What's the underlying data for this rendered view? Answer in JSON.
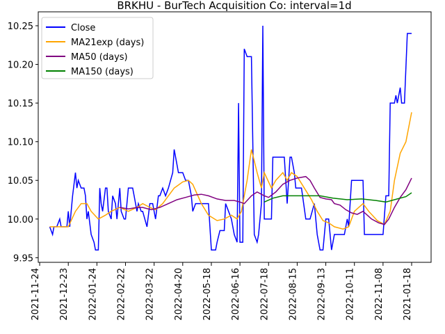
{
  "chart_data": {
    "type": "line",
    "title": "BRKHU - BurTech Acquisition Co: interval=1d",
    "xlim": [
      -1,
      273.6
    ],
    "xticks": [
      {
        "value": 0,
        "label": "2021-11-24"
      },
      {
        "value": 20,
        "label": "2021-12-23"
      },
      {
        "value": 40,
        "label": "2022-01-24"
      },
      {
        "value": 60,
        "label": "2022-02-22"
      },
      {
        "value": 80,
        "label": "2022-03-22"
      },
      {
        "value": 100,
        "label": "2022-04-20"
      },
      {
        "value": 120,
        "label": "2022-05-18"
      },
      {
        "value": 140,
        "label": "2022-06-16"
      },
      {
        "value": 160,
        "label": "2022-07-18"
      },
      {
        "value": 180,
        "label": "2022-08-15"
      },
      {
        "value": 200,
        "label": "2022-09-13"
      },
      {
        "value": 220,
        "label": "2022-10-11"
      },
      {
        "value": 240,
        "label": "2022-11-08"
      },
      {
        "value": 260,
        "label": "2021-01-18"
      }
    ],
    "ylim": [
      9.944,
      10.268
    ],
    "yticks": [
      9.95,
      {
        "value": 10,
        "label": "10.00"
      },
      10.05,
      {
        "value": 10.1,
        "label": "10.10"
      },
      10.15,
      {
        "value": 10.2,
        "label": "10.20"
      },
      10.25
    ],
    "legend": "upper left",
    "series": [
      {
        "name": "Close",
        "color": "#0000ff",
        "x": [
          7,
          9,
          10,
          12,
          14,
          15,
          17,
          19,
          20,
          21,
          23,
          25,
          26,
          27,
          29,
          31,
          32,
          33,
          34,
          36,
          38,
          39,
          41,
          42,
          43,
          44,
          46,
          47,
          48,
          50,
          51,
          53,
          54,
          56,
          57,
          59,
          60,
          62,
          65,
          66,
          68,
          69,
          71,
          72,
          75,
          77,
          79,
          81,
          83,
          84,
          86,
          88,
          90,
          93,
          94,
          96,
          97,
          100,
          102,
          104,
          106,
          107,
          109,
          113,
          115,
          118,
          120,
          123,
          124,
          126,
          129,
          130,
          132,
          134,
          136,
          138,
          139,
          140,
          142,
          143,
          145,
          147,
          148,
          150,
          152,
          153,
          155,
          156,
          157,
          159,
          162,
          163,
          165,
          169,
          171,
          173,
          175,
          176,
          178,
          179,
          182,
          183,
          186,
          189,
          192,
          194,
          196,
          198,
          200,
          202,
          204,
          206,
          210,
          213,
          215,
          216,
          218,
          222,
          226,
          227,
          232,
          237,
          240,
          242,
          244,
          245,
          248,
          249,
          250,
          252,
          253,
          255,
          257,
          260
        ],
        "values": [
          9.99,
          9.98,
          9.99,
          9.99,
          10.0,
          9.99,
          9.99,
          9.99,
          10.01,
          9.99,
          10.03,
          10.06,
          10.04,
          10.05,
          10.04,
          10.04,
          10.03,
          10.0,
          10.01,
          9.98,
          9.97,
          9.96,
          9.96,
          10.04,
          10.02,
          10.01,
          10.04,
          10.04,
          10.01,
          10.0,
          10.03,
          10.02,
          10.0,
          10.04,
          10.01,
          10.0,
          10.0,
          10.04,
          10.04,
          10.03,
          10.01,
          10.02,
          10.01,
          10.01,
          9.99,
          10.02,
          10.02,
          10.0,
          10.03,
          10.03,
          10.04,
          10.03,
          10.04,
          10.06,
          10.09,
          10.07,
          10.06,
          10.06,
          10.05,
          10.05,
          10.03,
          10.01,
          10.02,
          10.02,
          10.02,
          10.02,
          9.96,
          9.96,
          9.97,
          9.985,
          9.985,
          10.02,
          10.01,
          10.0,
          9.98,
          9.97,
          10.15,
          9.97,
          9.97,
          10.22,
          10.21,
          10.21,
          10.21,
          9.98,
          9.97,
          9.98,
          10.02,
          10.25,
          10.0,
          10.0,
          10.0,
          10.08,
          10.08,
          10.08,
          10.08,
          10.02,
          10.08,
          10.08,
          10.06,
          10.04,
          10.04,
          10.04,
          10.0,
          10.0,
          10.02,
          9.98,
          9.96,
          9.96,
          10.0,
          10.0,
          9.96,
          9.98,
          9.98,
          9.98,
          10.0,
          9.99,
          10.05,
          10.05,
          10.05,
          9.98,
          9.98,
          9.98,
          9.98,
          10.03,
          10.03,
          10.15,
          10.15,
          10.16,
          10.15,
          10.17,
          10.15,
          10.15,
          10.24,
          10.24
        ]
      },
      {
        "name": "MA21exp (days)",
        "color": "#ffa500",
        "x": [
          7,
          15,
          20,
          25,
          29,
          33,
          36,
          41,
          46,
          50,
          56,
          62,
          68,
          72,
          77,
          81,
          86,
          90,
          94,
          100,
          104,
          107,
          113,
          118,
          124,
          129,
          134,
          138,
          141,
          145,
          148,
          152,
          155,
          157,
          162,
          165,
          170,
          173,
          176,
          180,
          185,
          190,
          194,
          198,
          202,
          206,
          212,
          216,
          220,
          226,
          230,
          236,
          241,
          245,
          248,
          252,
          256,
          260
        ],
        "values": [
          9.99,
          9.99,
          9.99,
          10.01,
          10.02,
          10.02,
          10.01,
          10.0,
          10.005,
          10.01,
          10.015,
          10.01,
          10.015,
          10.02,
          10.015,
          10.012,
          10.02,
          10.03,
          10.04,
          10.048,
          10.05,
          10.045,
          10.02,
          10.005,
          9.998,
          10.0,
          10.005,
          10.0,
          10.01,
          10.05,
          10.09,
          10.06,
          10.04,
          10.06,
          10.04,
          10.05,
          10.06,
          10.05,
          10.06,
          10.055,
          10.04,
          10.025,
          10.01,
          9.998,
          9.995,
          9.99,
          9.987,
          9.99,
          10.01,
          10.02,
          10.01,
          9.998,
          9.993,
          10.01,
          10.05,
          10.085,
          10.1,
          10.138
        ]
      },
      {
        "name": "MA50 (days)",
        "color": "#800080",
        "x": [
          56,
          62,
          68,
          72,
          78,
          84,
          90,
          96,
          102,
          108,
          113,
          118,
          124,
          130,
          136,
          140,
          143,
          148,
          152,
          157,
          160,
          165,
          170,
          175,
          180,
          186,
          189,
          192,
          196,
          200,
          204,
          206,
          210,
          214,
          218,
          222,
          226,
          232,
          237,
          241,
          244,
          248,
          252,
          256,
          260
        ],
        "values": [
          10.015,
          10.013,
          10.015,
          10.015,
          10.012,
          10.015,
          10.02,
          10.025,
          10.028,
          10.031,
          10.032,
          10.03,
          10.026,
          10.024,
          10.024,
          10.022,
          10.02,
          10.03,
          10.035,
          10.03,
          10.028,
          10.035,
          10.045,
          10.05,
          10.053,
          10.055,
          10.05,
          10.04,
          10.028,
          10.026,
          10.025,
          10.02,
          10.018,
          10.012,
          10.008,
          10.006,
          10.01,
          10.0,
          9.995,
          9.993,
          10.0,
          10.015,
          10.028,
          10.038,
          10.053
        ]
      },
      {
        "name": "MA150 (days)",
        "color": "#008000",
        "x": [
          157,
          163,
          170,
          180,
          190,
          196,
          205,
          215,
          225,
          235,
          242,
          250,
          256,
          260
        ],
        "values": [
          10.022,
          10.027,
          10.03,
          10.03,
          10.03,
          10.03,
          10.027,
          10.025,
          10.026,
          10.024,
          10.022,
          10.026,
          10.029,
          10.034
        ]
      }
    ]
  }
}
